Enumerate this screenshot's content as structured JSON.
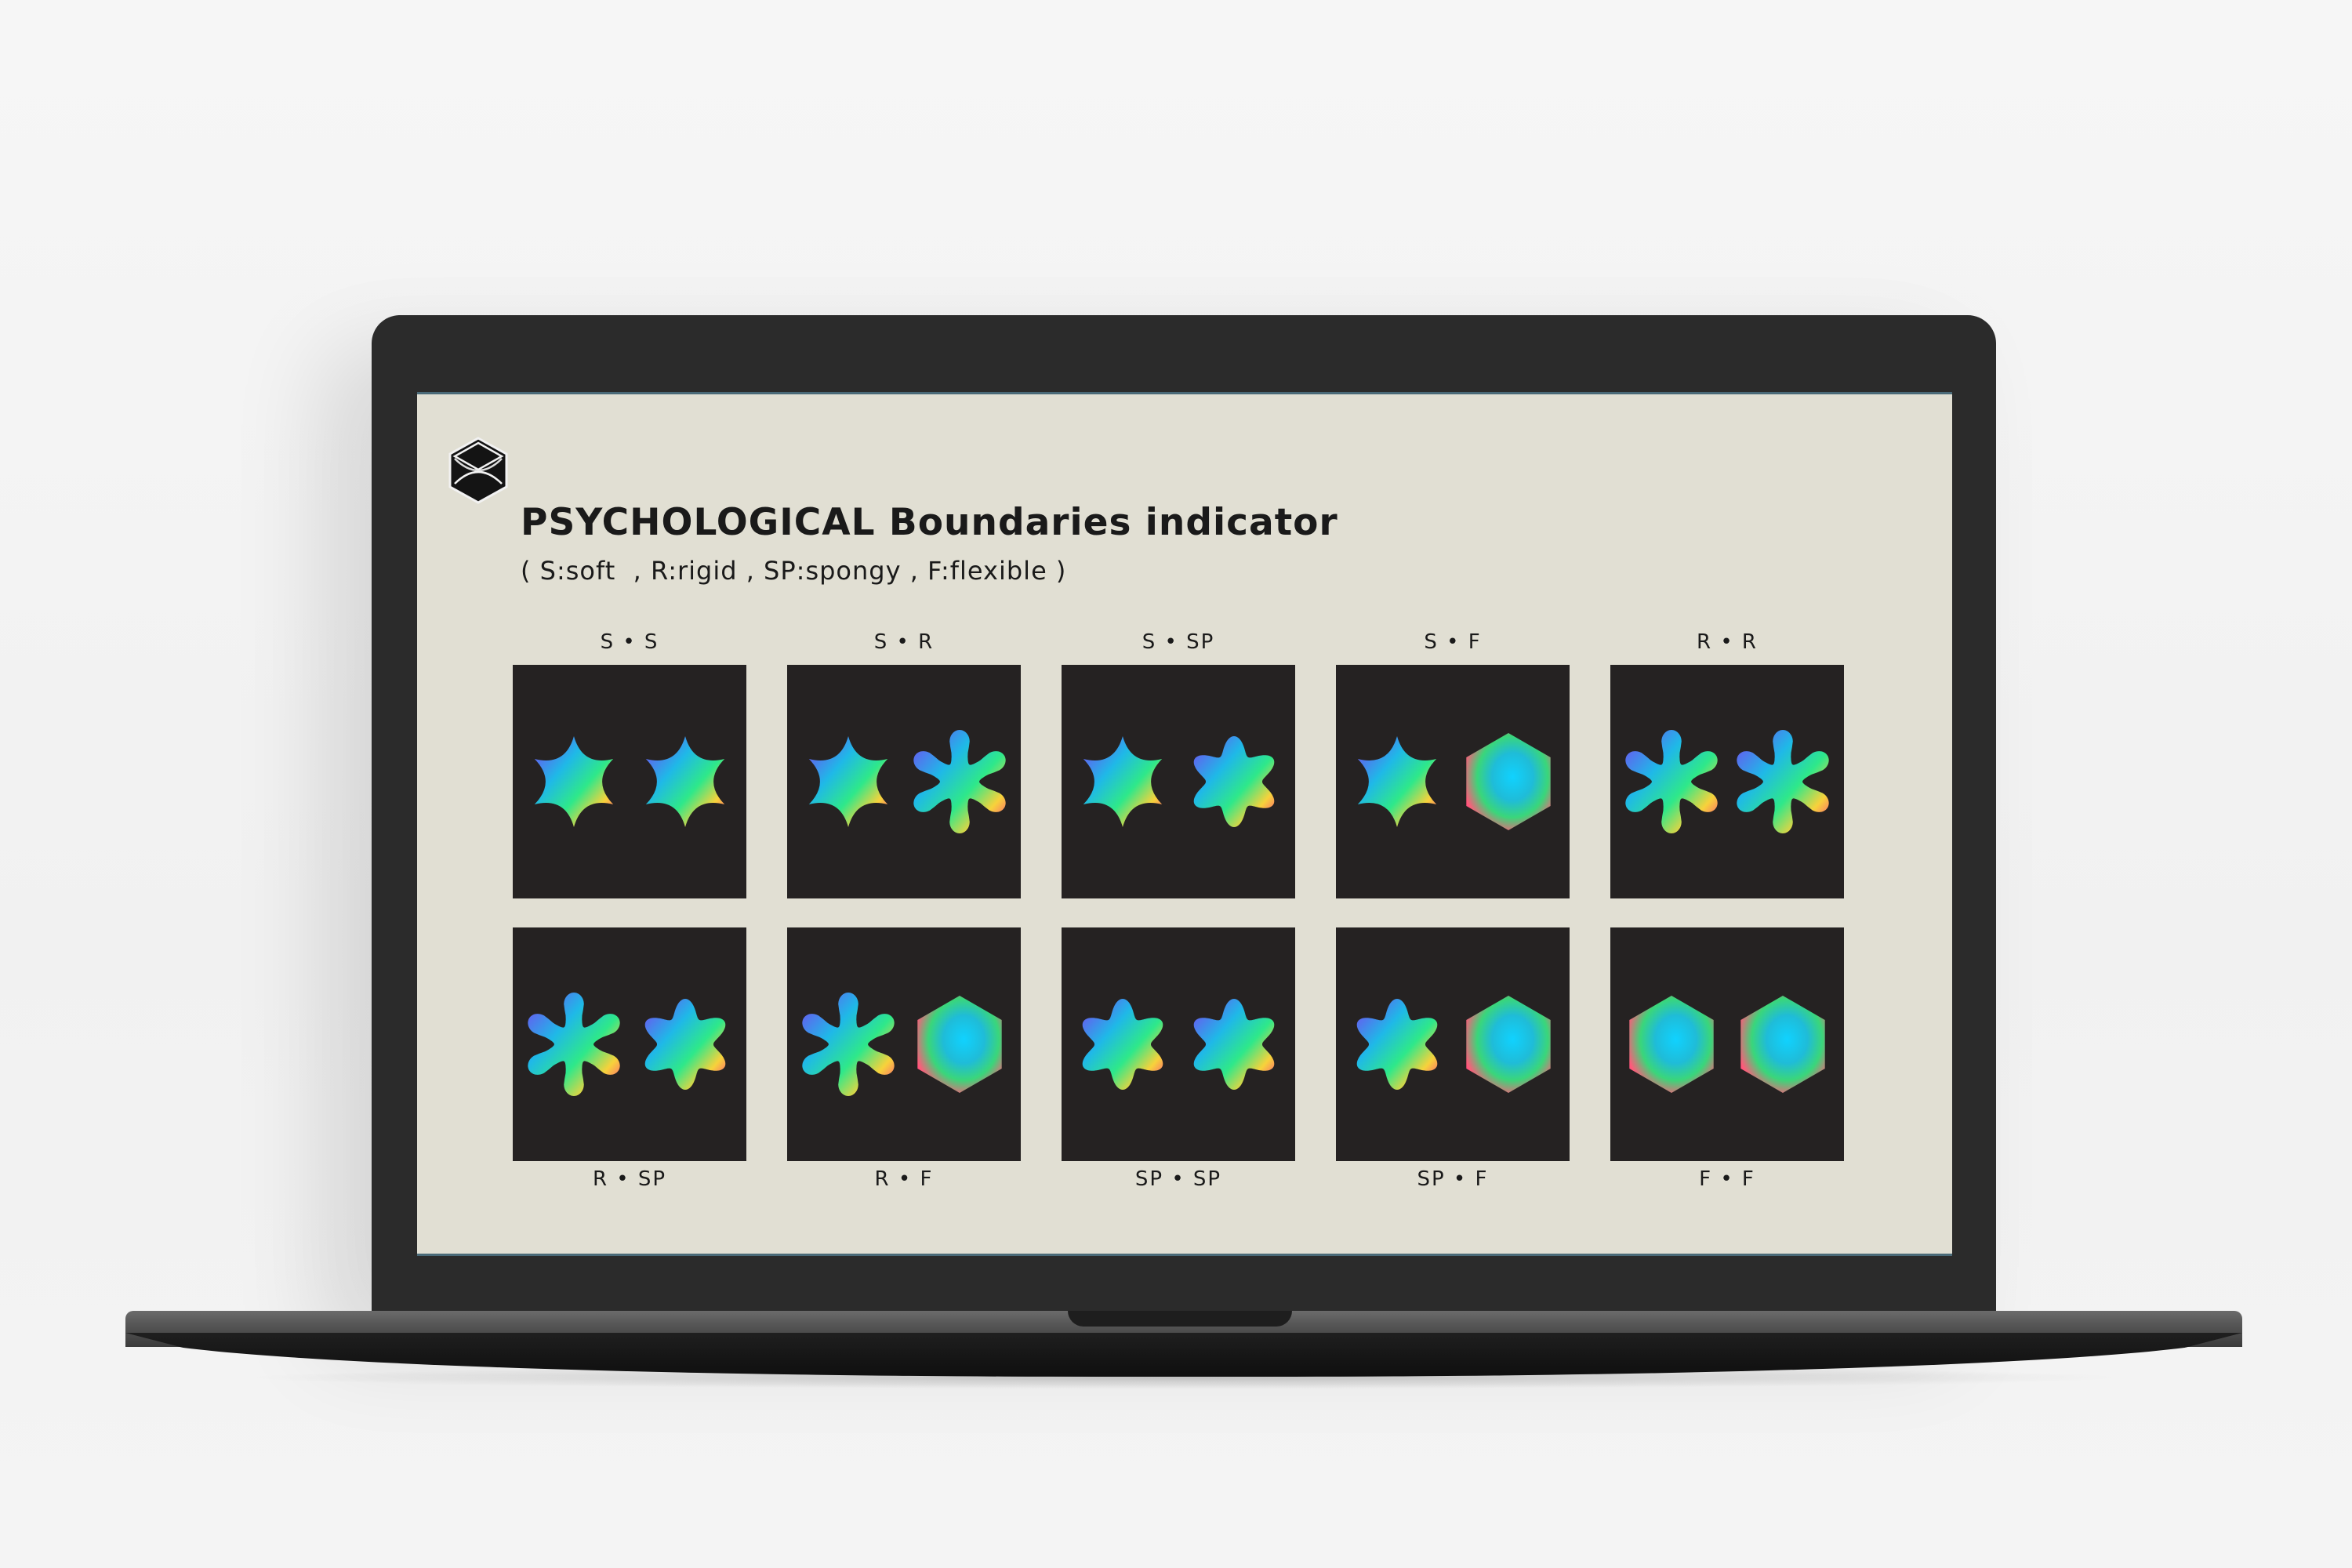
{
  "app": {
    "title": "PSYCHOLOGICAL Boundaries indicator",
    "subtitle": "( S:soft  , R:rigid , SP:spongy , F:flexible )",
    "logo_icon": "hexagon-cube-icon"
  },
  "shapes": {
    "S": "soft-star-icon",
    "R": "rigid-star-icon",
    "SP": "spongy-flower-icon",
    "F": "flexible-hexagon-icon"
  },
  "colors": {
    "screen_background": "#e1dfd3",
    "tile_background": "#252222",
    "text": "#1a1a1a",
    "laptop_body": "#2b2b2b"
  },
  "tiles": [
    {
      "label": "S • S",
      "left": "S",
      "right": "S"
    },
    {
      "label": "S • R",
      "left": "S",
      "right": "R"
    },
    {
      "label": "S • SP",
      "left": "S",
      "right": "SP"
    },
    {
      "label": "S • F",
      "left": "S",
      "right": "F"
    },
    {
      "label": "R • R",
      "left": "R",
      "right": "R"
    },
    {
      "label": "R • SP",
      "left": "R",
      "right": "SP"
    },
    {
      "label": "R • F",
      "left": "R",
      "right": "F"
    },
    {
      "label": "SP • SP",
      "left": "SP",
      "right": "SP"
    },
    {
      "label": "SP • F",
      "left": "SP",
      "right": "F"
    },
    {
      "label": "F • F",
      "left": "F",
      "right": "F"
    }
  ]
}
